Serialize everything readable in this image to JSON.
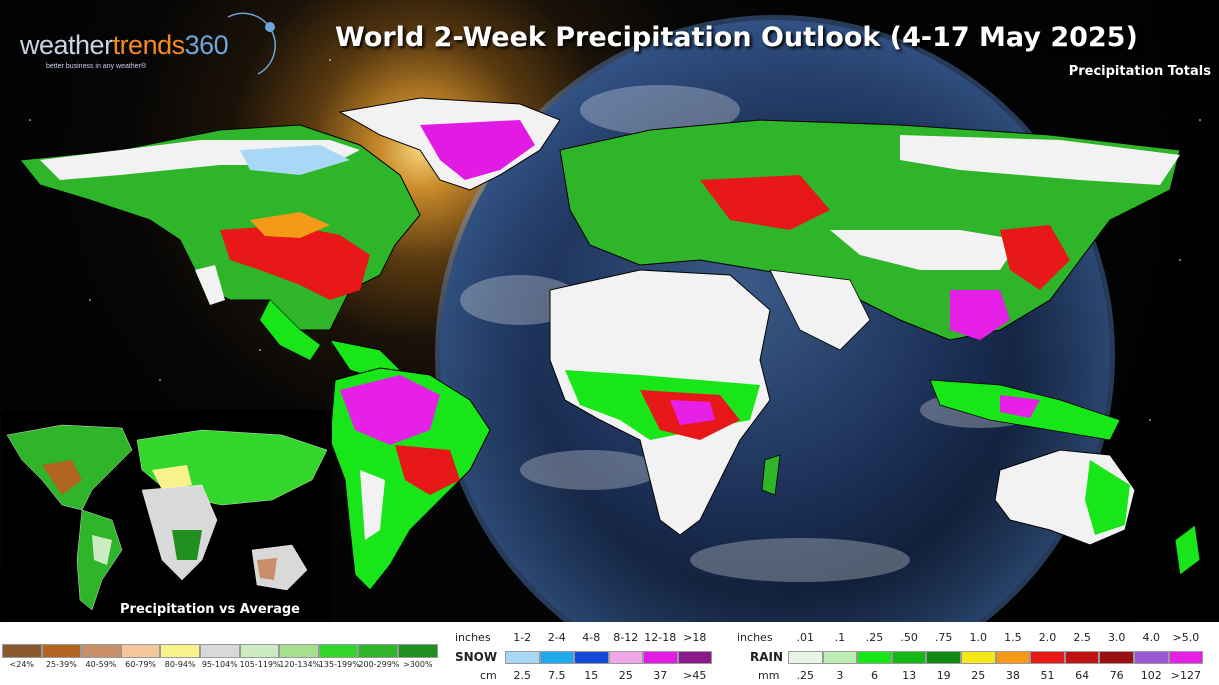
{
  "brand": {
    "word_part1": "weather",
    "word_part2": "trends",
    "word_part3": "360",
    "tagline": "better business in any weather®"
  },
  "title": "World 2-Week Precipitation Outlook (4-17 May 2025)",
  "subtitle": "Precipitation Totals",
  "inset_label": "Precipitation vs Average",
  "percent_legend": {
    "labels": [
      "<24%",
      "25-39%",
      "40-59%",
      "60-79%",
      "80-94%",
      "95-104%",
      "105-119%",
      "120-134%",
      "135-199%",
      "200-299%",
      ">300%"
    ],
    "colors": [
      "#8a5a2e",
      "#b0641f",
      "#c8906a",
      "#f3c79a",
      "#f7f38a",
      "#d9d9d9",
      "#cdebc0",
      "#a6e08e",
      "#33d62b",
      "#2fb52a",
      "#1f8f1f"
    ]
  },
  "snow_legend": {
    "inches_label": "inches",
    "inches_ticks": [
      "1-2",
      "2-4",
      "4-8",
      "8-12",
      "12-18",
      ">18"
    ],
    "type_label": "SNOW",
    "cm_label": "cm",
    "cm_ticks": [
      "2.5",
      "7.5",
      "15",
      "25",
      "37",
      ">45"
    ],
    "colors": [
      "#a9d8f6",
      "#1fa9ec",
      "#1448d8",
      "#f0a8e8",
      "#e11be4",
      "#8a1a8a"
    ]
  },
  "rain_legend": {
    "inches_label": "inches",
    "inches_ticks": [
      ".01",
      ".1",
      ".25",
      ".50",
      ".75",
      "1.0",
      "1.5",
      "2.0",
      "2.5",
      "3.0",
      "4.0",
      ">5.0"
    ],
    "type_label": "RAIN",
    "mm_label": "mm",
    "mm_ticks": [
      ".25",
      "3",
      "6",
      "13",
      "19",
      "25",
      "38",
      "51",
      "64",
      "76",
      "102",
      ">127"
    ],
    "colors": [
      "#e8f6e8",
      "#bfeeb5",
      "#19e619",
      "#15b815",
      "#0f8a14",
      "#f5e81a",
      "#f59a16",
      "#e81818",
      "#c01414",
      "#9a0f0f",
      "#9b59d6",
      "#e620e6"
    ]
  }
}
